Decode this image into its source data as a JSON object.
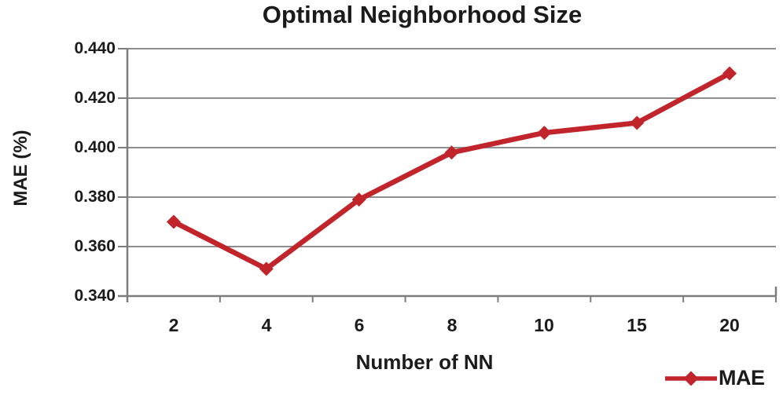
{
  "chart_data": {
    "type": "line",
    "title": "Optimal Neighborhood Size",
    "xlabel": "Number of NN",
    "ylabel": "MAE (%)",
    "categories": [
      "2",
      "4",
      "6",
      "8",
      "10",
      "15",
      "20"
    ],
    "series": [
      {
        "name": "MAE",
        "values": [
          0.37,
          0.351,
          0.379,
          0.398,
          0.406,
          0.41,
          0.43
        ]
      }
    ],
    "ylim": [
      0.34,
      0.44
    ],
    "yticks": [
      0.44,
      0.42,
      0.4,
      0.38,
      0.36,
      0.34
    ],
    "ytick_labels": [
      "0.440",
      "0.420",
      "0.400",
      "0.380",
      "0.360",
      "0.340"
    ],
    "grid": true,
    "legend": [
      "MAE"
    ],
    "legend_position": "bottom-right",
    "marker": "diamond",
    "colors": {
      "series": "#c2242b",
      "gridline": "#8e8e8e",
      "axis": "#7d7d7d",
      "text": "#1b1b1b",
      "background": "#ffffff"
    }
  }
}
